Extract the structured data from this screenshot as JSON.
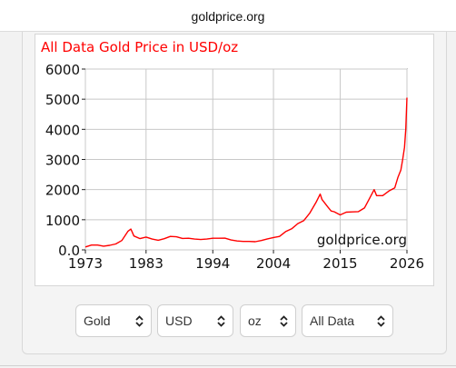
{
  "browser": {
    "url": "goldprice.org"
  },
  "chart_data": {
    "type": "line",
    "title": "All Data Gold Price in USD/oz",
    "watermark": "goldprice.org",
    "xlabel": "",
    "ylabel": "",
    "xlim": [
      1973,
      2026
    ],
    "ylim": [
      0,
      6000
    ],
    "x_ticks": [
      "1973",
      "1983",
      "1994",
      "2004",
      "2015",
      "2026"
    ],
    "y_ticks": [
      "6000",
      "5000",
      "4000",
      "3000",
      "2000",
      "1000",
      "0.0"
    ],
    "grid": true,
    "line_color": "#ff0000",
    "title_color": "#ff0000",
    "series": [
      {
        "x": [
          1973,
          1974,
          1975,
          1976,
          1977,
          1978,
          1979,
          1980,
          1980.5,
          1981,
          1982,
          1983,
          1984,
          1985,
          1986,
          1987,
          1988,
          1989,
          1990,
          1991,
          1992,
          1993,
          1994,
          1995,
          1996,
          1997,
          1998,
          1999,
          2000,
          2001,
          2002,
          2003,
          2004,
          2005,
          2006,
          2007,
          2008,
          2009,
          2010,
          2011,
          2011.7,
          2012,
          2013,
          2013.5,
          2014,
          2015,
          2016,
          2017,
          2018,
          2019,
          2020,
          2020.6,
          2021,
          2022,
          2023,
          2024,
          2024.5,
          2025,
          2025.3,
          2025.6,
          2025.8,
          2026
        ],
        "y": [
          95,
          160,
          160,
          125,
          150,
          195,
          310,
          615,
          690,
          460,
          375,
          425,
          360,
          320,
          370,
          445,
          435,
          380,
          385,
          360,
          345,
          360,
          385,
          385,
          390,
          330,
          295,
          280,
          280,
          270,
          310,
          365,
          410,
          445,
          605,
          700,
          870,
          975,
          1225,
          1570,
          1850,
          1670,
          1410,
          1290,
          1265,
          1160,
          1250,
          1260,
          1270,
          1390,
          1770,
          2000,
          1800,
          1800,
          1950,
          2060,
          2400,
          2650,
          3000,
          3400,
          4000,
          5050
        ]
      }
    ]
  },
  "controls": {
    "metal": "Gold",
    "currency": "USD",
    "unit": "oz",
    "range": "All Data"
  },
  "icons": {
    "select_chevron": "up-down-chevron-icon"
  }
}
